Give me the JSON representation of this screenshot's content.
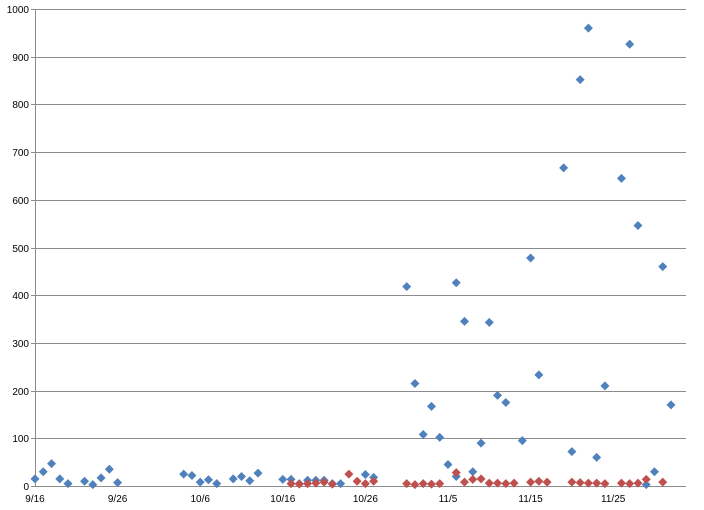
{
  "chart_data": {
    "type": "scatter",
    "title": "",
    "xlabel": "",
    "ylabel": "",
    "ylim": [
      0,
      1000
    ],
    "yticks": [
      "0",
      "100",
      "200",
      "300",
      "400",
      "500",
      "600",
      "700",
      "800",
      "900",
      "1000"
    ],
    "xlim": [
      "9/16",
      "12/2"
    ],
    "xticks": [
      "9/16",
      "9/26",
      "10/6",
      "10/16",
      "10/26",
      "11/5",
      "11/15",
      "11/25"
    ],
    "grid": true,
    "legend": "none",
    "colors": {
      "series_1": "#4f81bd",
      "series_2": "#c0504d",
      "grid": "#8c8c8c"
    },
    "series": [
      {
        "marker": "diamond",
        "points": [
          [
            "9/16",
            15
          ],
          [
            "9/17",
            30
          ],
          [
            "9/18",
            47
          ],
          [
            "9/19",
            15
          ],
          [
            "9/20",
            5
          ],
          [
            "9/22",
            10
          ],
          [
            "9/23",
            3
          ],
          [
            "9/24",
            17
          ],
          [
            "9/25",
            35
          ],
          [
            "9/26",
            7
          ],
          [
            "10/4",
            25
          ],
          [
            "10/5",
            22
          ],
          [
            "10/6",
            8
          ],
          [
            "10/7",
            13
          ],
          [
            "10/8",
            5
          ],
          [
            "10/10",
            15
          ],
          [
            "10/11",
            20
          ],
          [
            "10/12",
            11
          ],
          [
            "10/13",
            27
          ],
          [
            "10/16",
            14
          ],
          [
            "10/17",
            14
          ],
          [
            "10/18",
            5
          ],
          [
            "10/19",
            12
          ],
          [
            "10/20",
            12
          ],
          [
            "10/21",
            12
          ],
          [
            "10/22",
            5
          ],
          [
            "10/23",
            5
          ],
          [
            "10/26",
            24
          ],
          [
            "10/27",
            18
          ],
          [
            "10/31",
            418
          ],
          [
            "11/1",
            215
          ],
          [
            "11/2",
            108
          ],
          [
            "11/3",
            167
          ],
          [
            "11/4",
            102
          ],
          [
            "11/5",
            45
          ],
          [
            "11/6",
            20
          ],
          [
            "11/6",
            426
          ],
          [
            "11/7",
            345
          ],
          [
            "11/8",
            30
          ],
          [
            "11/9",
            90
          ],
          [
            "11/10",
            343
          ],
          [
            "11/11",
            190
          ],
          [
            "11/12",
            175
          ],
          [
            "11/14",
            95
          ],
          [
            "11/15",
            478
          ],
          [
            "11/16",
            233
          ],
          [
            "11/19",
            667
          ],
          [
            "11/20",
            72
          ],
          [
            "11/21",
            852
          ],
          [
            "11/22",
            960
          ],
          [
            "11/23",
            60
          ],
          [
            "11/24",
            210
          ],
          [
            "11/26",
            645
          ],
          [
            "11/27",
            926
          ],
          [
            "11/28",
            546
          ],
          [
            "11/29",
            3
          ],
          [
            "11/30",
            30
          ],
          [
            "12/1",
            460
          ],
          [
            "12/2",
            170
          ]
        ]
      },
      {
        "marker": "diamond",
        "points": [
          [
            "10/17",
            5
          ],
          [
            "10/18",
            4
          ],
          [
            "10/19",
            5
          ],
          [
            "10/20",
            6
          ],
          [
            "10/21",
            8
          ],
          [
            "10/22",
            4
          ],
          [
            "10/24",
            25
          ],
          [
            "10/25",
            10
          ],
          [
            "10/26",
            5
          ],
          [
            "10/27",
            10
          ],
          [
            "10/31",
            5
          ],
          [
            "11/1",
            3
          ],
          [
            "11/2",
            5
          ],
          [
            "11/3",
            4
          ],
          [
            "11/4",
            5
          ],
          [
            "11/6",
            28
          ],
          [
            "11/7",
            8
          ],
          [
            "11/8",
            14
          ],
          [
            "11/9",
            15
          ],
          [
            "11/10",
            6
          ],
          [
            "11/11",
            6
          ],
          [
            "11/12",
            5
          ],
          [
            "11/13",
            6
          ],
          [
            "11/15",
            8
          ],
          [
            "11/16",
            10
          ],
          [
            "11/17",
            8
          ],
          [
            "11/20",
            8
          ],
          [
            "11/21",
            7
          ],
          [
            "11/22",
            6
          ],
          [
            "11/23",
            6
          ],
          [
            "11/24",
            5
          ],
          [
            "11/26",
            6
          ],
          [
            "11/27",
            5
          ],
          [
            "11/28",
            6
          ],
          [
            "11/29",
            14
          ],
          [
            "12/1",
            8
          ]
        ]
      }
    ]
  }
}
